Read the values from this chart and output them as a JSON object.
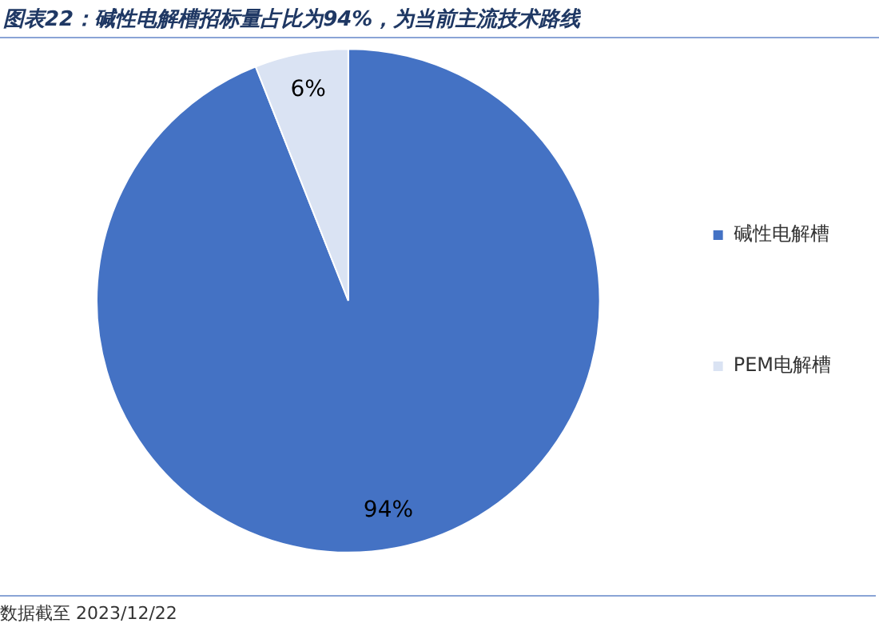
{
  "chart_data": {
    "type": "pie",
    "title": "图表22：碱性电解槽招标量占比为94%，为当前主流技术路线",
    "categories": [
      "碱性电解槽",
      "PEM电解槽"
    ],
    "values": [
      94,
      6
    ],
    "colors": [
      "#4472c4",
      "#dae3f3"
    ],
    "value_labels": [
      "94%",
      "6%"
    ],
    "legend": "right",
    "annotations": [
      "数据截至 2023/12/22"
    ]
  }
}
